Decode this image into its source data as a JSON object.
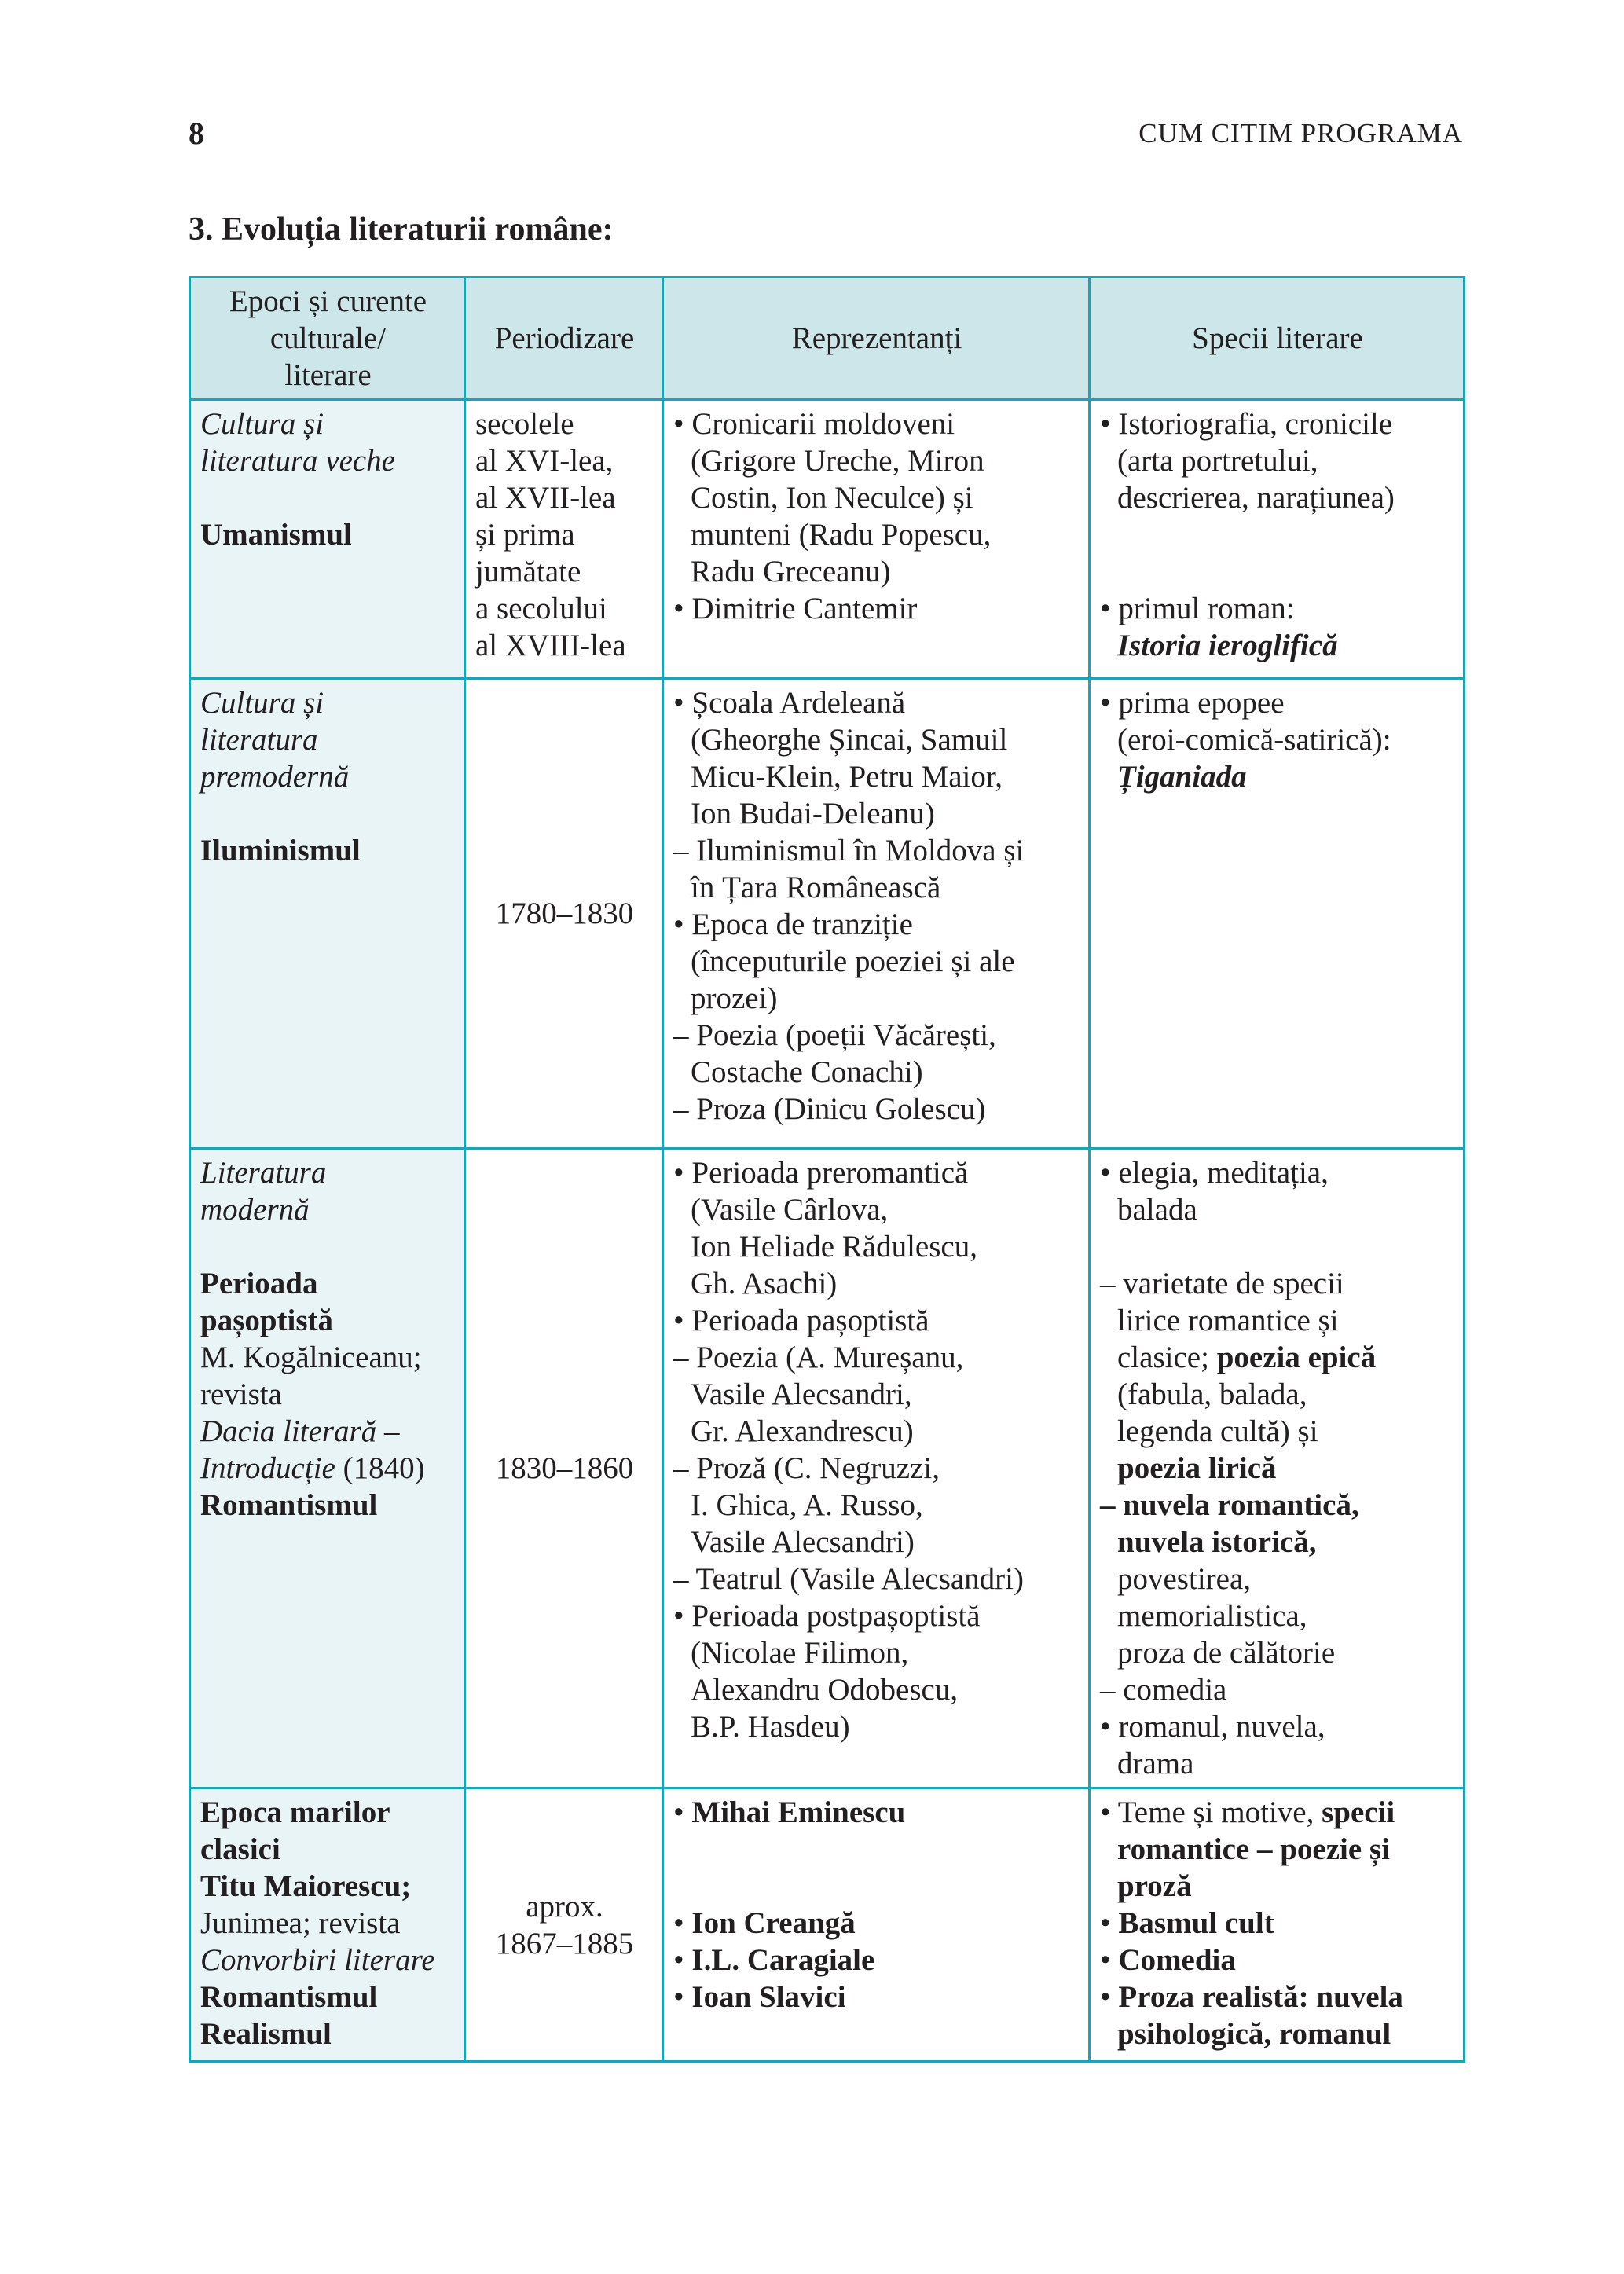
{
  "page": {
    "number": "8",
    "running_head": "CUM CITIM PROGRAMA"
  },
  "section_title": "3. Evoluția literaturii române:",
  "table": {
    "headers": [
      [
        "Epoci și curente",
        "culturale/",
        "literare"
      ],
      [
        "Periodizare"
      ],
      [
        "Reprezentanți"
      ],
      [
        "Specii literare"
      ]
    ],
    "rows": [
      {
        "cells": [
          [
            {
              "i": "Cultura și"
            },
            {
              "i": "literatura veche"
            },
            "",
            {
              "b": "Umanismul"
            }
          ],
          [
            "secolele",
            "al XVI-lea,",
            "al XVII-lea",
            "și prima",
            "jumătate",
            "a secolului",
            "al XVIII-lea"
          ],
          [
            "• Cronicarii moldoveni",
            "(Grigore Ureche, Miron",
            "Costin, Ion Neculce) și",
            "munteni (Radu Popescu,",
            "Radu Greceanu)",
            "• Dimitrie Cantemir"
          ],
          [
            "• Istoriografia, cronicile",
            "(arta portretului,",
            "descrierea, narațiunea)",
            "",
            "",
            "• primul roman:",
            {
              "bi": "Istoria ieroglifică"
            }
          ]
        ]
      },
      {
        "cells": [
          [
            {
              "i": "Cultura și"
            },
            {
              "i": "literatura"
            },
            {
              "i": "premodernă"
            },
            "",
            {
              "b": "Iluminismul"
            }
          ],
          [
            "1780–1830"
          ],
          [
            "• Școala Ardeleană",
            "(Gheorghe Șincai, Samuil",
            "Micu-Klein, Petru Maior,",
            "Ion Budai-Deleanu)",
            "– Iluminismul în Moldova și",
            "în Țara Românească",
            "• Epoca de tranziție",
            "(începuturile poeziei și ale",
            "prozei)",
            "– Poezia (poeții Văcărești,",
            "Costache Conachi)",
            "– Proza (Dinicu Golescu)"
          ],
          [
            "• prima epopee",
            "(eroi-comică-satirică):",
            {
              "bi": "Țiganiada"
            }
          ]
        ]
      },
      {
        "cells": [
          [
            {
              "i": "Literatura"
            },
            {
              "i": "modernă"
            },
            "",
            {
              "b": "Perioada"
            },
            {
              "b": "pașoptistă"
            },
            "M. Kogălniceanu;",
            "revista",
            {
              "i": "Dacia literară –"
            },
            [
              {
                "i": "Introducție"
              },
              " (1840)"
            ],
            {
              "b": "Romantismul"
            }
          ],
          [
            "1830–1860"
          ],
          [
            "• Perioada preromantică",
            "(Vasile Cârlova,",
            "Ion Heliade Rădulescu,",
            "Gh. Asachi)",
            "• Perioada pașoptistă",
            "– Poezia (A. Mureșanu,",
            "Vasile Alecsandri,",
            "Gr. Alexandrescu)",
            "– Proză (C. Negruzzi,",
            "I. Ghica, A. Russo,",
            "Vasile Alecsandri)",
            "– Teatrul (Vasile Alecsandri)",
            "• Perioada postpașoptistă",
            "(Nicolae Filimon,",
            "Alexandru Odobescu,",
            "B.P. Hasdeu)"
          ],
          [
            "• elegia, meditația,",
            "balada",
            "",
            "– varietate de specii",
            "lirice romantice și",
            [
              "clasice; ",
              {
                "b": "poezia epică"
              }
            ],
            "(fabula, balada,",
            "legenda cultă) și",
            {
              "b": "poezia lirică"
            },
            [
              {
                "b": "– nuvela romantică,"
              }
            ],
            {
              "b": "nuvela istorică,"
            },
            "povestirea,",
            "memorialistica,",
            "proza de călătorie",
            "– comedia",
            "• romanul, nuvela,",
            "drama"
          ]
        ]
      },
      {
        "cells": [
          [
            {
              "b": "Epoca marilor"
            },
            {
              "b": "clasici"
            },
            {
              "b": "Titu Maiorescu;"
            },
            "Junimea; revista",
            {
              "i": "Convorbiri literare"
            },
            {
              "b": "Romantismul"
            },
            {
              "b": "Realismul"
            }
          ],
          [
            "aprox.",
            "1867–1885"
          ],
          [
            [
              "• ",
              {
                "b": "Mihai Eminescu"
              }
            ],
            "",
            "",
            [
              "• ",
              {
                "b": "Ion Creangă"
              }
            ],
            [
              "• ",
              {
                "b": "I.L. Caragiale"
              }
            ],
            [
              "• ",
              {
                "b": "Ioan Slavici"
              }
            ]
          ],
          [
            [
              "• Teme și motive, ",
              {
                "b": "specii"
              }
            ],
            {
              "b": "romantice – poezie și"
            },
            {
              "b": "proză"
            },
            [
              "• ",
              {
                "b": "Basmul cult"
              }
            ],
            [
              "• ",
              {
                "b": "Comedia"
              }
            ],
            [
              "• ",
              {
                "b": "Proza realistă: nuvela"
              }
            ],
            {
              "b": "psihologică, romanul"
            }
          ]
        ]
      }
    ]
  },
  "colors": {
    "border": "#1ba5b3",
    "header_bg": "#cde6ea",
    "first_col_bg": "#e9f4f6",
    "text": "#231f20"
  }
}
